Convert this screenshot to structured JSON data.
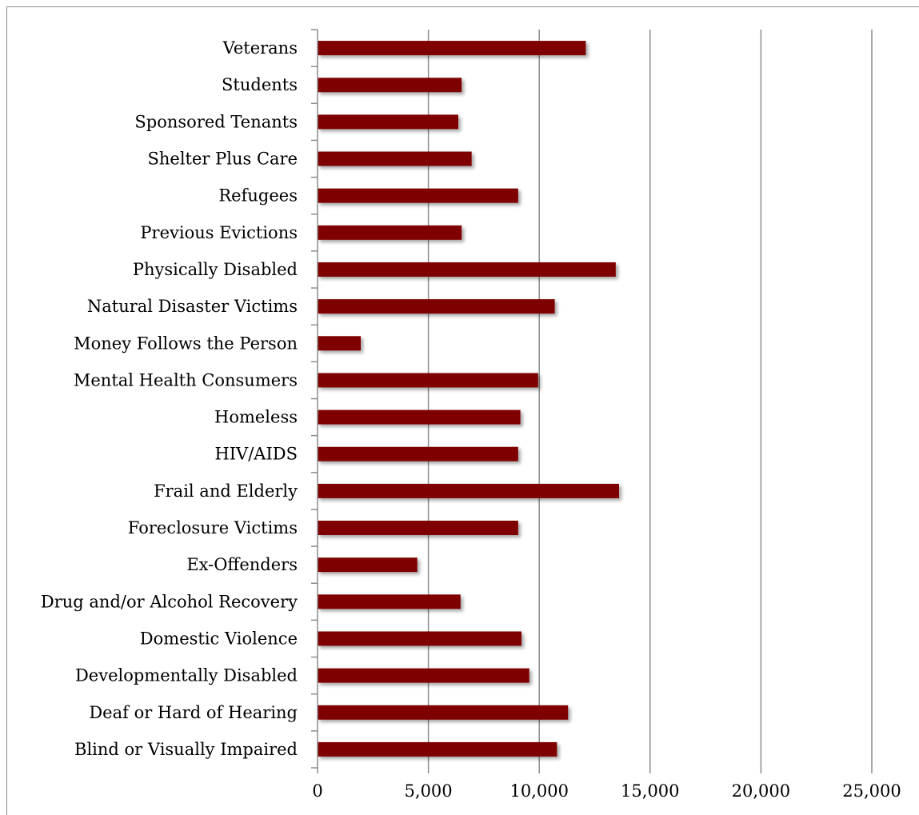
{
  "chart_data": {
    "type": "bar",
    "orientation": "horizontal",
    "categories": [
      "Veterans",
      "Students",
      "Sponsored Tenants",
      "Shelter Plus Care",
      "Refugees",
      "Previous Evictions",
      "Physically Disabled",
      "Natural Disaster Victims",
      "Money Follows the Person",
      "Mental Health Consumers",
      "Homeless",
      "HIV/AIDS",
      "Frail and Elderly",
      "Foreclosure Victims",
      "Ex-Offenders",
      "Drug and/or Alcohol Recovery",
      "Domestic Violence",
      "Developmentally Disabled",
      "Deaf or Hard of Hearing",
      "Blind or Visually Impaired"
    ],
    "values": [
      12100,
      6500,
      6350,
      6950,
      9050,
      6500,
      13450,
      10700,
      1950,
      9950,
      9150,
      9050,
      13600,
      9050,
      4500,
      6450,
      9200,
      9550,
      11300,
      10800
    ],
    "xlim": [
      0,
      25000
    ],
    "ticks": [
      0,
      5000,
      10000,
      15000,
      20000,
      25000
    ],
    "tick_labels": [
      "0",
      "5,000",
      "10,000",
      "15,000",
      "20,000",
      "25,000"
    ],
    "title": "",
    "xlabel": "",
    "ylabel": "",
    "grid": "vertical",
    "legend": "none",
    "bar_color": "#7f0000",
    "grid_color": "#8c8c8c"
  }
}
